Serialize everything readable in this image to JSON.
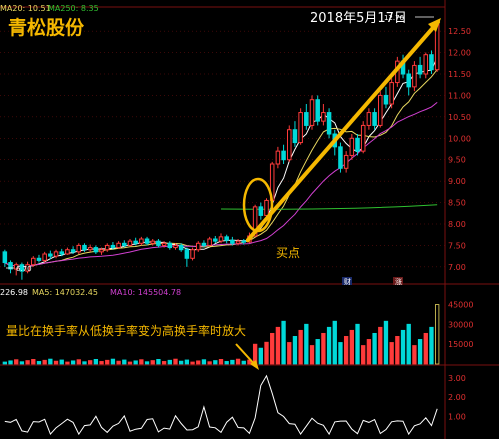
{
  "stock_name": "青松股份",
  "annotations": {
    "date_label": "2018年5月17日",
    "buy_point": "买点",
    "volume_note": "量比在换手率从低换手率变为高换手率时放大"
  },
  "price_legend": {
    "ma20": "MA20: 10.51",
    "ma250": "MA250: 8.35"
  },
  "volume_legend": {
    "vol": "226.98",
    "ma5": "MA5: 147032.45",
    "ma10": "MA10: 145504.78"
  },
  "markers": {
    "high_price": "12.76",
    "low_price": "6.70",
    "badge_1": "财",
    "badge_2": "涨"
  },
  "colors": {
    "up": "#ff3b3b",
    "down": "#00d9d9",
    "ma5": "#ffffff",
    "ma10": "#e8d860",
    "ma20": "#d040d0",
    "ma250": "#30c030",
    "annotation": "#f5b800",
    "price_axis": "#e03030",
    "grid": "#7a1010"
  },
  "chart_data": [
    {
      "type": "candlestick",
      "title": "青松股份",
      "y_axis_ticks": [
        "12.50",
        "12.00",
        "11.50",
        "11.00",
        "10.50",
        "10.00",
        "9.50",
        "9.00",
        "8.50",
        "8.00",
        "7.50",
        "7.00"
      ],
      "ylim": [
        6.6,
        12.9
      ],
      "series_legend": [
        "MA20: 10.51",
        "MA250: 8.35"
      ],
      "candles": [
        [
          7.35,
          7.1,
          7.4,
          7.0
        ],
        [
          7.1,
          6.95,
          7.15,
          6.85
        ],
        [
          6.95,
          7.05,
          7.1,
          6.8
        ],
        [
          7.05,
          6.9,
          7.1,
          6.7
        ],
        [
          6.9,
          7.05,
          7.12,
          6.85
        ],
        [
          7.05,
          7.2,
          7.25,
          7.0
        ],
        [
          7.2,
          7.15,
          7.28,
          7.1
        ],
        [
          7.15,
          7.3,
          7.35,
          7.1
        ],
        [
          7.3,
          7.25,
          7.38,
          7.18
        ],
        [
          7.25,
          7.35,
          7.4,
          7.2
        ],
        [
          7.35,
          7.3,
          7.42,
          7.25
        ],
        [
          7.3,
          7.4,
          7.45,
          7.28
        ],
        [
          7.4,
          7.35,
          7.48,
          7.3
        ],
        [
          7.35,
          7.5,
          7.55,
          7.3
        ],
        [
          7.5,
          7.4,
          7.55,
          7.35
        ],
        [
          7.4,
          7.45,
          7.52,
          7.35
        ],
        [
          7.45,
          7.35,
          7.5,
          7.3
        ],
        [
          7.35,
          7.4,
          7.45,
          7.28
        ],
        [
          7.4,
          7.5,
          7.55,
          7.35
        ],
        [
          7.5,
          7.45,
          7.58,
          7.4
        ],
        [
          7.45,
          7.55,
          7.6,
          7.42
        ],
        [
          7.55,
          7.5,
          7.62,
          7.45
        ],
        [
          7.5,
          7.6,
          7.65,
          7.48
        ],
        [
          7.6,
          7.55,
          7.68,
          7.5
        ],
        [
          7.55,
          7.65,
          7.7,
          7.5
        ],
        [
          7.65,
          7.55,
          7.7,
          7.5
        ],
        [
          7.55,
          7.6,
          7.65,
          7.5
        ],
        [
          7.6,
          7.5,
          7.65,
          7.45
        ],
        [
          7.5,
          7.55,
          7.6,
          7.45
        ],
        [
          7.55,
          7.45,
          7.6,
          7.4
        ],
        [
          7.45,
          7.5,
          7.55,
          7.4
        ],
        [
          7.5,
          7.4,
          7.55,
          7.35
        ],
        [
          7.4,
          7.2,
          7.45,
          7.0
        ],
        [
          7.2,
          7.4,
          7.45,
          7.15
        ],
        [
          7.4,
          7.55,
          7.6,
          7.35
        ],
        [
          7.55,
          7.5,
          7.62,
          7.45
        ],
        [
          7.5,
          7.65,
          7.7,
          7.48
        ],
        [
          7.65,
          7.6,
          7.72,
          7.55
        ],
        [
          7.6,
          7.7,
          7.78,
          7.55
        ],
        [
          7.7,
          7.62,
          7.75,
          7.55
        ],
        [
          7.62,
          7.55,
          7.7,
          7.5
        ],
        [
          7.55,
          7.6,
          7.65,
          7.5
        ],
        [
          7.6,
          7.58,
          7.65,
          7.52
        ],
        [
          7.58,
          7.72,
          7.8,
          7.55
        ],
        [
          7.72,
          8.4,
          8.45,
          7.7
        ],
        [
          8.4,
          8.2,
          8.5,
          8.1
        ],
        [
          8.2,
          8.55,
          8.6,
          8.15
        ],
        [
          8.55,
          9.4,
          9.45,
          8.5
        ],
        [
          9.4,
          9.7,
          9.8,
          9.3
        ],
        [
          9.7,
          9.5,
          9.85,
          9.4
        ],
        [
          9.5,
          10.2,
          10.3,
          9.45
        ],
        [
          10.2,
          9.9,
          10.4,
          9.8
        ],
        [
          9.9,
          10.6,
          10.7,
          9.85
        ],
        [
          10.6,
          10.3,
          10.8,
          10.2
        ],
        [
          10.3,
          10.9,
          11.0,
          10.2
        ],
        [
          10.9,
          10.4,
          11.0,
          10.3
        ],
        [
          10.4,
          10.6,
          10.8,
          10.3
        ],
        [
          10.6,
          10.1,
          10.7,
          10.0
        ],
        [
          10.1,
          9.8,
          10.2,
          9.6
        ],
        [
          9.8,
          9.3,
          9.9,
          9.2
        ],
        [
          9.3,
          9.6,
          9.7,
          9.2
        ],
        [
          9.6,
          10.0,
          10.1,
          9.5
        ],
        [
          10.0,
          9.7,
          10.1,
          9.6
        ],
        [
          9.7,
          10.3,
          10.4,
          9.65
        ],
        [
          10.3,
          10.6,
          10.7,
          10.2
        ],
        [
          10.6,
          10.3,
          10.7,
          10.2
        ],
        [
          10.3,
          11.0,
          11.1,
          10.25
        ],
        [
          11.0,
          10.8,
          11.2,
          10.7
        ],
        [
          10.8,
          11.3,
          11.4,
          10.7
        ],
        [
          11.3,
          11.8,
          11.9,
          11.2
        ],
        [
          11.8,
          11.5,
          11.95,
          11.4
        ],
        [
          11.5,
          11.2,
          11.6,
          11.0
        ],
        [
          11.2,
          11.7,
          11.8,
          11.1
        ],
        [
          11.7,
          11.5,
          11.9,
          11.4
        ],
        [
          11.5,
          11.95,
          12.0,
          11.4
        ],
        [
          11.95,
          11.6,
          12.05,
          11.5
        ],
        [
          11.6,
          12.7,
          12.76,
          11.55
        ]
      ]
    },
    {
      "type": "bar",
      "title": "",
      "y_axis_ticks": [
        "45000",
        "30000",
        "15000"
      ],
      "series_legend": [
        "226.98",
        "MA5: 147032.45",
        "MA10: 145504.78"
      ]
    },
    {
      "type": "line",
      "title": "",
      "y_axis_ticks": [
        "3.00",
        "2.00",
        "1.00"
      ]
    }
  ]
}
